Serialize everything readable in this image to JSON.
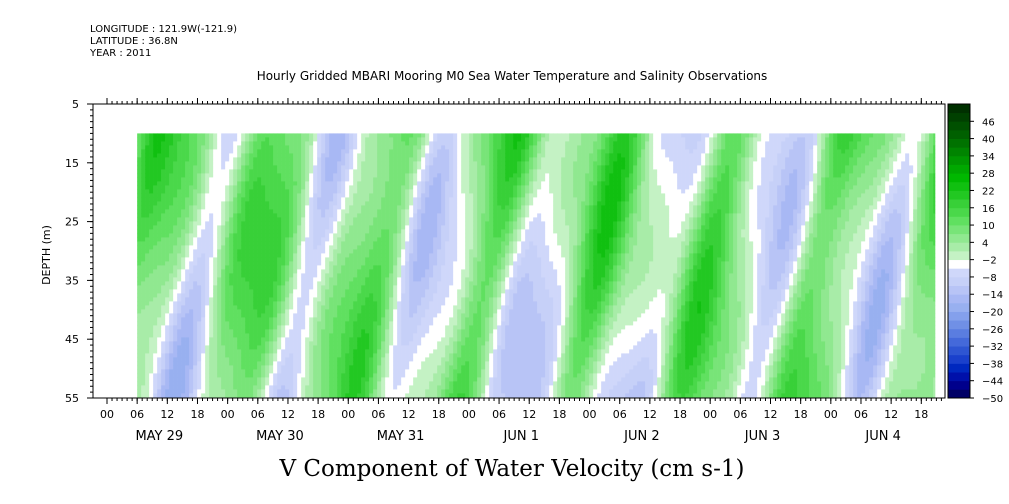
{
  "header": {
    "longitude": "LONGITUDE : 121.9W(-121.9)",
    "latitude": "LATITUDE : 36.8N",
    "year": "YEAR : 2011"
  },
  "chart_data": {
    "type": "heatmap",
    "title": "Hourly Gridded MBARI Mooring M0 Sea Water Temperature and Salinity Observations",
    "variable_title": "V Component of Water Velocity (cm s-1)",
    "ylabel": "DEPTH (m)",
    "y_ticks": [
      5,
      15,
      25,
      35,
      45,
      55
    ],
    "ylim": [
      55,
      5
    ],
    "x_hour_ticks": [
      "00",
      "06",
      "12",
      "18",
      "00",
      "06",
      "12",
      "18",
      "00",
      "06",
      "12",
      "18",
      "00",
      "06",
      "12",
      "18",
      "00",
      "06",
      "12",
      "18",
      "00",
      "06",
      "12",
      "18",
      "00",
      "06",
      "12",
      "18"
    ],
    "x_day_labels": [
      "MAY 29",
      "MAY 30",
      "MAY 31",
      "JUN  1",
      "JUN  2",
      "JUN  3",
      "JUN  4"
    ],
    "colorbar": {
      "labels": [
        "46",
        "40",
        "34",
        "28",
        "22",
        "16",
        "10",
        "4",
        "-2",
        "-8",
        "-14",
        "-20",
        "-26",
        "-32",
        "-38",
        "-44",
        "-50"
      ],
      "range": [
        -50,
        52
      ],
      "step": 3,
      "colors": [
        "#000066",
        "#00008c",
        "#0010aa",
        "#0028bf",
        "#1a40cc",
        "#2e55d2",
        "#4469da",
        "#5a7de0",
        "#7090e6",
        "#84a0ec",
        "#98b0f0",
        "#a8b8f4",
        "#b8c4f6",
        "#c6d0f8",
        "#cfd7fa",
        "#ffffff",
        "#c4f2c4",
        "#a8eca8",
        "#90e890",
        "#78e478",
        "#60e060",
        "#4ad84a",
        "#38d038",
        "#22c822",
        "#10c010",
        "#00b800",
        "#00a800",
        "#009600",
        "#008400",
        "#007200",
        "#006000",
        "#005000",
        "#004000",
        "#003000"
      ]
    },
    "data_start_hour": 6,
    "data_depth_top_m": 10,
    "data_depth_bottom_m": 55,
    "field_range_cm_s": [
      -20,
      22
    ],
    "grid": false
  }
}
